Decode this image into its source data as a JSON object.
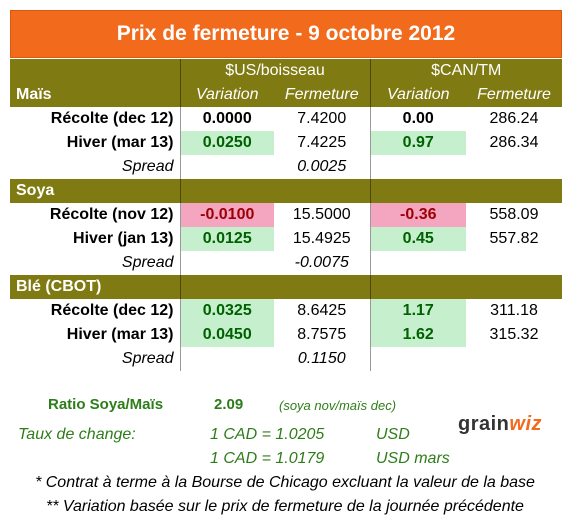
{
  "title": "Prix de fermeture - 9 octobre 2012",
  "headers": {
    "usd": "$US/boisseau",
    "cad": "$CAN/TM",
    "variation": "Variation",
    "fermeture": "Fermeture"
  },
  "sections": [
    {
      "name": "Maïs",
      "rows": [
        {
          "label": "Récolte (dec 12)",
          "usd_var": "0.0000",
          "usd_close": "7.4200",
          "cad_var": "0.00",
          "cad_close": "286.24"
        },
        {
          "label": "Hiver (mar 13)",
          "usd_var": "0.0250",
          "usd_close": "7.4225",
          "cad_var": "0.97",
          "cad_close": "286.34"
        }
      ],
      "spread_label": "Spread",
      "spread": "0.0025"
    },
    {
      "name": "Soya",
      "rows": [
        {
          "label": "Récolte (nov 12)",
          "usd_var": "-0.0100",
          "usd_close": "15.5000",
          "cad_var": "-0.36",
          "cad_close": "558.09"
        },
        {
          "label": "Hiver (jan 13)",
          "usd_var": "0.0125",
          "usd_close": "15.4925",
          "cad_var": "0.45",
          "cad_close": "557.82"
        }
      ],
      "spread_label": "Spread",
      "spread": "-0.0075"
    },
    {
      "name": "Blé (CBOT)",
      "rows": [
        {
          "label": "Récolte (dec 12)",
          "usd_var": "0.0325",
          "usd_close": "8.6425",
          "cad_var": "1.17",
          "cad_close": "311.18"
        },
        {
          "label": "Hiver (mar 13)",
          "usd_var": "0.0450",
          "usd_close": "8.7575",
          "cad_var": "1.62",
          "cad_close": "315.32"
        }
      ],
      "spread_label": "Spread",
      "spread": "0.1150"
    }
  ],
  "ratio": {
    "label": "Ratio Soya/Maïs",
    "value": "2.09",
    "note": "(soya nov/maïs dec)"
  },
  "exchange": {
    "label": "Taux de change:",
    "line1": "1 CAD =  1.0205",
    "unit1": "USD",
    "line2": "1 CAD =  1.0179",
    "unit2": "USD mars"
  },
  "notes": {
    "n1": "* Contrat à terme à la Bourse de Chicago excluant la valeur de la base",
    "n2": "** Variation basée sur le prix de fermeture de la journée précédente"
  },
  "logo": {
    "part1": "grain",
    "part2": "wiz"
  },
  "colors": {
    "title_bg": "#f26b1d",
    "header_bg": "#7f7a12",
    "positive_bg": "#c6efce",
    "negative_bg": "#f4a6c1",
    "green_text": "#2e7d1a"
  }
}
